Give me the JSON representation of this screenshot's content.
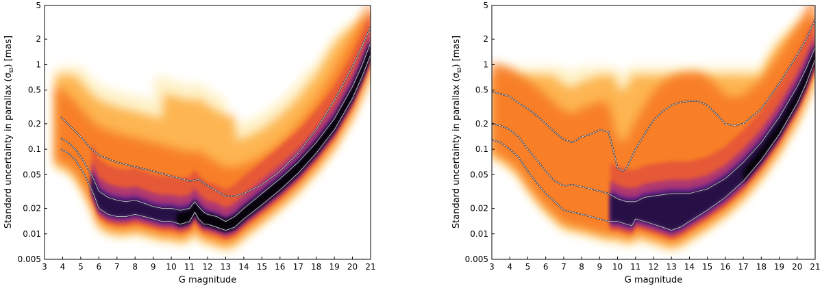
{
  "chart_data": [
    {
      "type": "scatter",
      "style": "density-heatmap with percentile curves",
      "xlabel": "G magnitude",
      "ylabel": "Standard uncertainty in parallax (σ_ϖ) [mas]",
      "xlim": [
        3,
        21
      ],
      "ylim": [
        0.005,
        5
      ],
      "yscale": "log",
      "xticks": [
        "3",
        "4",
        "5",
        "6",
        "7",
        "8",
        "9",
        "10",
        "11",
        "12",
        "13",
        "14",
        "15",
        "16",
        "17",
        "18",
        "19",
        "20",
        "21"
      ],
      "yticks": [
        "0.005",
        "0.01",
        "0.02",
        "0.05",
        "0.1",
        "0.2",
        "0.5",
        "1",
        "2",
        "5"
      ],
      "colormap": [
        "#fde7a0",
        "#fca636",
        "#f7761f",
        "#e24f3b",
        "#a3307e",
        "#5c1f8f",
        "#1c0a3e",
        "#000004"
      ],
      "series": [
        {
          "name": "upper percentile",
          "x": [
            3.9,
            4.2,
            4.5,
            5.0,
            5.5,
            6.0,
            7.0,
            8.0,
            9.0,
            10.0,
            10.5,
            11.0,
            11.5,
            12.0,
            12.5,
            13.0,
            13.5,
            14.0,
            15.0,
            16.0,
            17.0,
            18.0,
            19.0,
            20.0,
            20.5,
            21.0
          ],
          "y": [
            0.24,
            0.21,
            0.18,
            0.14,
            0.105,
            0.085,
            0.07,
            0.062,
            0.055,
            0.048,
            0.045,
            0.042,
            0.044,
            0.037,
            0.032,
            0.028,
            0.028,
            0.03,
            0.038,
            0.055,
            0.09,
            0.17,
            0.38,
            0.95,
            1.6,
            2.8
          ]
        },
        {
          "name": "median",
          "x": [
            3.9,
            4.3,
            4.7,
            5.2,
            5.7,
            6.0,
            6.5,
            7.0,
            7.5,
            8.0,
            8.5,
            9.0,
            9.5,
            10.0,
            10.5,
            11.0,
            11.3,
            11.5,
            11.8,
            12.0,
            12.5,
            13.0,
            13.5,
            14.0,
            15.0,
            16.0,
            17.0,
            18.0,
            19.0,
            20.0,
            20.5,
            21.0
          ],
          "y": [
            0.135,
            0.12,
            0.1,
            0.07,
            0.045,
            0.032,
            0.027,
            0.025,
            0.024,
            0.025,
            0.023,
            0.021,
            0.02,
            0.02,
            0.019,
            0.02,
            0.024,
            0.021,
            0.018,
            0.017,
            0.016,
            0.014,
            0.016,
            0.02,
            0.03,
            0.045,
            0.07,
            0.12,
            0.23,
            0.55,
            0.95,
            1.8
          ]
        },
        {
          "name": "lower percentile",
          "x": [
            3.9,
            4.3,
            4.7,
            5.2,
            5.7,
            6.0,
            6.5,
            7.0,
            7.5,
            8.0,
            8.5,
            9.0,
            9.5,
            10.0,
            10.5,
            11.0,
            11.3,
            11.5,
            11.8,
            12.0,
            12.5,
            13.0,
            13.5,
            14.0,
            15.0,
            16.0,
            17.0,
            18.0,
            19.0,
            20.0,
            20.5,
            21.0
          ],
          "y": [
            0.1,
            0.09,
            0.075,
            0.05,
            0.03,
            0.02,
            0.017,
            0.016,
            0.016,
            0.017,
            0.016,
            0.015,
            0.014,
            0.014,
            0.013,
            0.014,
            0.018,
            0.015,
            0.013,
            0.013,
            0.012,
            0.011,
            0.012,
            0.015,
            0.022,
            0.033,
            0.052,
            0.09,
            0.17,
            0.4,
            0.7,
            1.3
          ]
        }
      ]
    },
    {
      "type": "scatter",
      "style": "density-heatmap with percentile curves",
      "xlabel": "G magnitude",
      "ylabel": "Standard uncertainty in parallax (σ_ϖ) [mas]",
      "xlim": [
        3,
        21
      ],
      "ylim": [
        0.005,
        5
      ],
      "yscale": "log",
      "xticks": [
        "3",
        "4",
        "5",
        "6",
        "7",
        "8",
        "9",
        "10",
        "11",
        "12",
        "13",
        "14",
        "15",
        "16",
        "17",
        "18",
        "19",
        "20",
        "21"
      ],
      "yticks": [
        "0.005",
        "0.01",
        "0.02",
        "0.05",
        "0.1",
        "0.2",
        "0.5",
        "1",
        "2",
        "5"
      ],
      "colormap": [
        "#fde7a0",
        "#fca636",
        "#f7761f",
        "#e24f3b",
        "#a3307e",
        "#5c1f8f",
        "#1c0a3e",
        "#000004"
      ],
      "series": [
        {
          "name": "upper percentile",
          "x": [
            3.0,
            3.5,
            4.0,
            4.5,
            5.0,
            5.5,
            6.0,
            6.5,
            7.0,
            7.5,
            8.0,
            8.5,
            9.0,
            9.5,
            9.8,
            10.0,
            10.3,
            10.5,
            11.0,
            11.5,
            12.0,
            12.5,
            13.0,
            13.5,
            14.0,
            14.5,
            15.0,
            15.5,
            16.0,
            16.5,
            17.0,
            18.0,
            19.0,
            20.0,
            20.5,
            21.0
          ],
          "y": [
            0.48,
            0.45,
            0.42,
            0.35,
            0.3,
            0.25,
            0.2,
            0.16,
            0.13,
            0.12,
            0.14,
            0.15,
            0.17,
            0.16,
            0.09,
            0.06,
            0.055,
            0.06,
            0.1,
            0.15,
            0.22,
            0.28,
            0.33,
            0.36,
            0.37,
            0.37,
            0.33,
            0.26,
            0.2,
            0.19,
            0.2,
            0.3,
            0.6,
            1.3,
            2.0,
            3.4
          ]
        },
        {
          "name": "median",
          "x": [
            3.0,
            3.5,
            4.0,
            4.5,
            5.0,
            5.5,
            6.0,
            6.5,
            7.0,
            7.5,
            8.0,
            8.5,
            9.0,
            9.5,
            10.0,
            10.5,
            11.0,
            11.5,
            12.0,
            12.5,
            13.0,
            13.5,
            14.0,
            15.0,
            16.0,
            17.0,
            18.0,
            19.0,
            20.0,
            20.5,
            21.0
          ],
          "y": [
            0.2,
            0.19,
            0.17,
            0.14,
            0.1,
            0.075,
            0.055,
            0.042,
            0.037,
            0.038,
            0.036,
            0.034,
            0.032,
            0.03,
            0.026,
            0.024,
            0.024,
            0.027,
            0.028,
            0.029,
            0.03,
            0.03,
            0.03,
            0.034,
            0.045,
            0.07,
            0.12,
            0.24,
            0.55,
            0.9,
            1.6
          ]
        },
        {
          "name": "lower percentile",
          "x": [
            3.0,
            3.5,
            4.0,
            4.5,
            5.0,
            5.5,
            6.0,
            6.5,
            7.0,
            7.5,
            8.0,
            8.5,
            9.0,
            9.5,
            10.0,
            10.5,
            10.8,
            11.0,
            11.5,
            12.0,
            12.5,
            13.0,
            13.5,
            14.0,
            15.0,
            16.0,
            17.0,
            18.0,
            19.0,
            20.0,
            20.5,
            21.0
          ],
          "y": [
            0.13,
            0.12,
            0.1,
            0.08,
            0.055,
            0.04,
            0.03,
            0.024,
            0.019,
            0.018,
            0.017,
            0.016,
            0.015,
            0.014,
            0.014,
            0.013,
            0.0125,
            0.015,
            0.014,
            0.013,
            0.012,
            0.011,
            0.012,
            0.014,
            0.019,
            0.027,
            0.042,
            0.075,
            0.15,
            0.35,
            0.6,
            1.15
          ]
        }
      ]
    }
  ]
}
